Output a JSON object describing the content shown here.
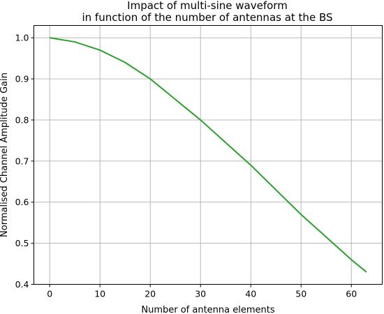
{
  "chart_data": {
    "type": "line",
    "title_line1": "Impact of multi-sine waveform",
    "title_line2": "in function of the number of antennas at the BS",
    "xlabel": "Number of antenna elements",
    "ylabel": "Normalised Channel Amplitude Gain",
    "xlim": [
      -3.15,
      66.15
    ],
    "ylim": [
      0.4,
      1.03
    ],
    "xticks": [
      0,
      10,
      20,
      30,
      40,
      50,
      60
    ],
    "yticks": [
      0.4,
      0.5,
      0.6,
      0.7,
      0.8,
      0.9,
      1.0
    ],
    "ytick_labels": [
      "0.4",
      "0.5",
      "0.6",
      "0.7",
      "0.8",
      "0.9",
      "1.0"
    ],
    "grid": true,
    "series": [
      {
        "color": "#2ca02c",
        "x": [
          0,
          5,
          10,
          15,
          20,
          25,
          30,
          35,
          40,
          45,
          50,
          55,
          60,
          63
        ],
        "y": [
          1.0,
          0.99,
          0.97,
          0.94,
          0.9,
          0.85,
          0.8,
          0.745,
          0.69,
          0.63,
          0.57,
          0.515,
          0.46,
          0.43
        ]
      }
    ]
  }
}
